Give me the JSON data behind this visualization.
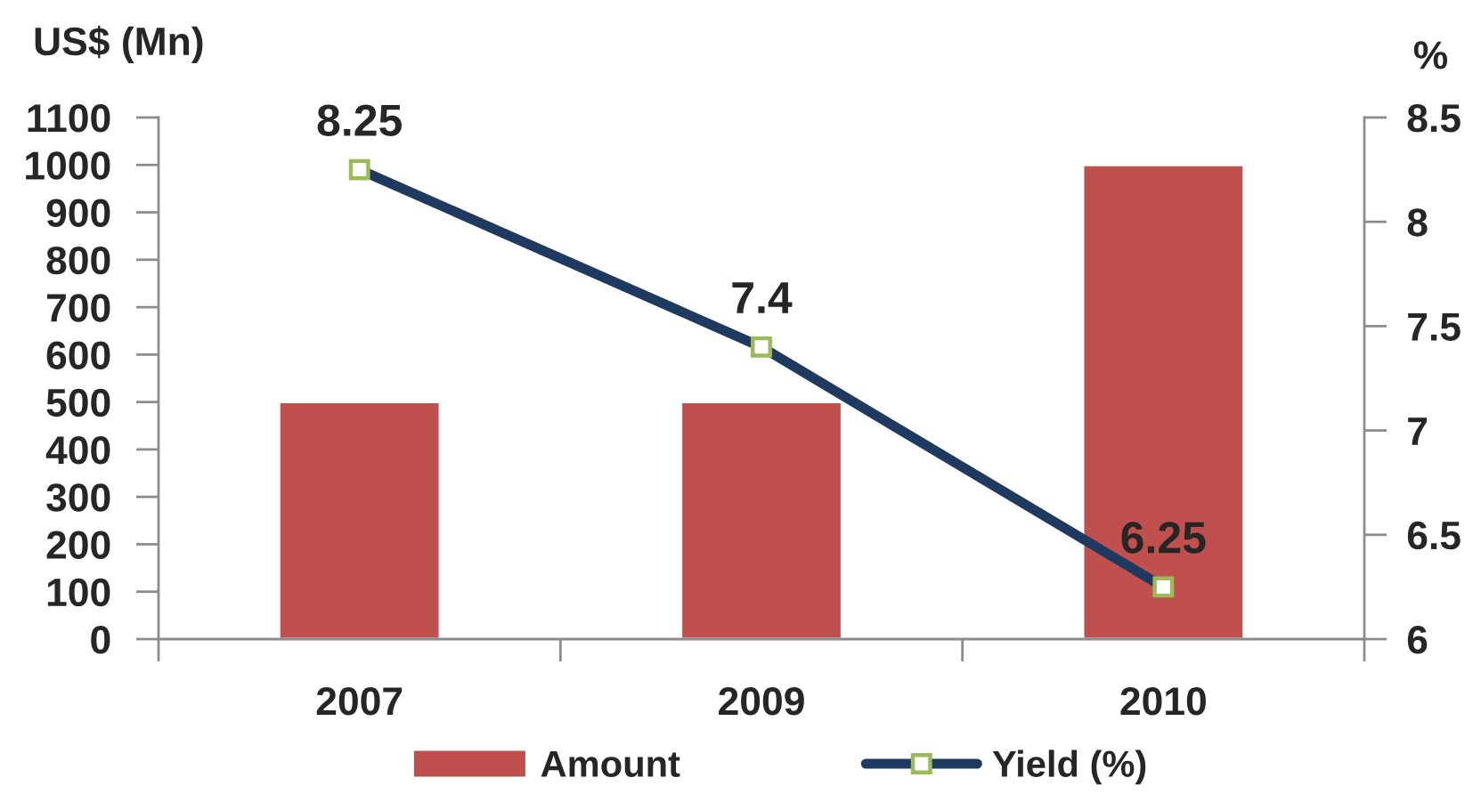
{
  "chart_data": {
    "type": "bar",
    "categories": [
      "2007",
      "2009",
      "2010"
    ],
    "ylabel": "US$ (Mn)",
    "y2label": "%",
    "ylim": [
      0,
      1100
    ],
    "yticks": [
      0,
      100,
      200,
      300,
      400,
      500,
      600,
      700,
      800,
      900,
      1000,
      1100
    ],
    "y2lim": [
      6,
      8.5
    ],
    "y2ticks": [
      6,
      6.5,
      7,
      7.5,
      8,
      8.5
    ],
    "series": [
      {
        "name": "Amount",
        "color": "#c0504d",
        "values": [
          500,
          500,
          1000
        ]
      },
      {
        "name": "Yield (%)",
        "type": "line",
        "axis": "y2",
        "color": "#1f3a60",
        "marker": "square",
        "values": [
          8.25,
          7.4,
          6.25
        ],
        "value_labels": [
          "8.25",
          "7.4",
          "6.25"
        ]
      }
    ],
    "legend": "bottom",
    "grid": false
  }
}
